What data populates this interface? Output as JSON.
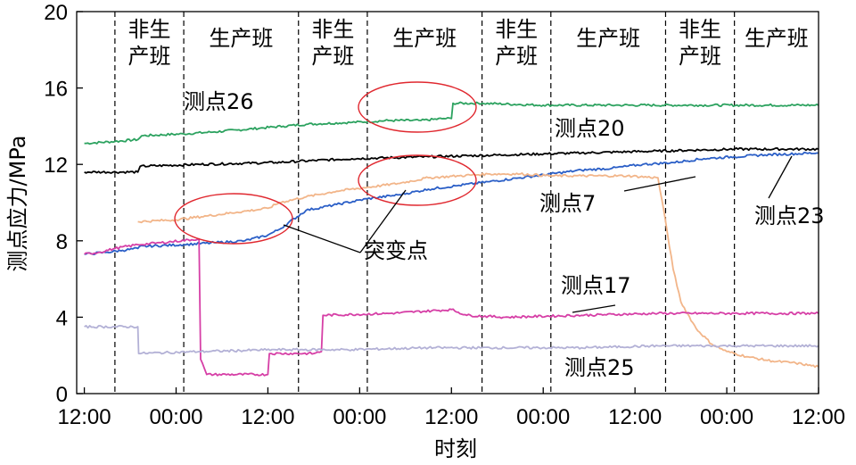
{
  "chart_data": {
    "type": "line",
    "title": "",
    "xlabel": "时刻",
    "ylabel": "测点应力/MPa",
    "ylim": [
      0,
      20
    ],
    "yticks": [
      "0",
      "4",
      "8",
      "12",
      "16",
      "20"
    ],
    "xticks": [
      "12:00",
      "00:00",
      "12:00",
      "00:00",
      "12:00",
      "00:00",
      "12:00",
      "00:00",
      "12:00"
    ],
    "xlim_hours": [
      -1,
      96
    ],
    "shifts": [
      {
        "label": "非生产班",
        "start": 4,
        "end": 13
      },
      {
        "label": "生产班",
        "start": 13,
        "end": 28
      },
      {
        "label": "非生产班",
        "start": 28,
        "end": 37
      },
      {
        "label": "生产班",
        "start": 37,
        "end": 52
      },
      {
        "label": "非生产班",
        "start": 52,
        "end": 61
      },
      {
        "label": "生产班",
        "start": 61,
        "end": 76
      },
      {
        "label": "非生产班",
        "start": 76,
        "end": 85
      },
      {
        "label": "生产班",
        "start": 85,
        "end": 96
      }
    ],
    "series": [
      {
        "name": "测点26",
        "color": "#2ca25f",
        "x": [
          0,
          4,
          7,
          7.5,
          13,
          17,
          20,
          23,
          26,
          29,
          35,
          40,
          44,
          47,
          48,
          48.2,
          52,
          60,
          70,
          80,
          96
        ],
        "y": [
          13.1,
          13.2,
          13.3,
          13.5,
          13.6,
          13.7,
          13.8,
          13.9,
          14.0,
          14.1,
          14.2,
          14.3,
          14.3,
          14.4,
          14.4,
          15.2,
          15.2,
          15.1,
          15.1,
          15.1,
          15.1
        ]
      },
      {
        "name": "测点20",
        "color": "#000000",
        "x": [
          0,
          7,
          7.3,
          15,
          25,
          35,
          45,
          55,
          65,
          75,
          85,
          96
        ],
        "y": [
          11.6,
          11.6,
          11.9,
          12.0,
          12.1,
          12.3,
          12.4,
          12.5,
          12.6,
          12.7,
          12.8,
          12.8
        ]
      },
      {
        "name": "测点23",
        "color": "#2b5fc7",
        "x": [
          0,
          3,
          5,
          7,
          7.2,
          13,
          17,
          21,
          24,
          25.5,
          29,
          33,
          37,
          41,
          45,
          49,
          53,
          57,
          61,
          65,
          69,
          73,
          77,
          81,
          85,
          89,
          96
        ],
        "y": [
          7.3,
          7.4,
          7.5,
          7.6,
          7.7,
          7.8,
          7.9,
          8.0,
          8.3,
          8.6,
          9.6,
          9.9,
          10.2,
          10.4,
          10.7,
          10.9,
          11.1,
          11.3,
          11.5,
          11.7,
          11.8,
          12.0,
          12.1,
          12.3,
          12.4,
          12.5,
          12.6
        ]
      },
      {
        "name": "测点7",
        "color": "#f2b589",
        "x": [
          7,
          12,
          16,
          20,
          24,
          25.5,
          29,
          33,
          37,
          41,
          45,
          49,
          53,
          57,
          61,
          65,
          71,
          75,
          76,
          77,
          78,
          80,
          82,
          84,
          87,
          90,
          93,
          96
        ],
        "y": [
          9.0,
          9.1,
          9.3,
          9.5,
          9.7,
          10.0,
          10.3,
          10.6,
          10.8,
          11.0,
          11.3,
          11.4,
          11.5,
          11.5,
          11.4,
          11.4,
          11.4,
          11.3,
          9.0,
          6.5,
          4.8,
          3.4,
          2.6,
          2.2,
          1.9,
          1.7,
          1.6,
          1.4
        ]
      },
      {
        "name": "测点17",
        "color": "#d63fa6",
        "x": [
          0,
          2,
          4,
          7,
          10,
          15,
          15.2,
          16,
          24,
          24.2,
          30,
          31,
          31.2,
          40,
          48,
          50,
          55,
          65,
          75,
          85,
          96
        ],
        "y": [
          7.3,
          7.4,
          7.6,
          7.8,
          7.9,
          8.1,
          1.8,
          1.0,
          1.0,
          2.1,
          2.1,
          2.2,
          4.1,
          4.2,
          4.4,
          4.1,
          4.0,
          4.1,
          4.2,
          4.2,
          4.2
        ]
      },
      {
        "name": "测点25",
        "color": "#b3b1d6",
        "x": [
          0,
          7,
          7.1,
          15,
          25,
          35,
          45,
          55,
          65,
          75,
          85,
          96
        ],
        "y": [
          3.5,
          3.5,
          2.1,
          2.2,
          2.3,
          2.3,
          2.4,
          2.4,
          2.4,
          2.5,
          2.5,
          2.5
        ]
      }
    ],
    "series_labels": [
      {
        "series": "测点26",
        "text": "测点26"
      },
      {
        "series": "测点20",
        "text": "测点20"
      },
      {
        "series": "测点7",
        "text": "测点7"
      },
      {
        "series": "测点23",
        "text": "测点23"
      },
      {
        "series": "测点17",
        "text": "测点17"
      },
      {
        "series": "测点25",
        "text": "测点25"
      }
    ],
    "annotation": "突变点",
    "grid": false,
    "legend": "none"
  }
}
